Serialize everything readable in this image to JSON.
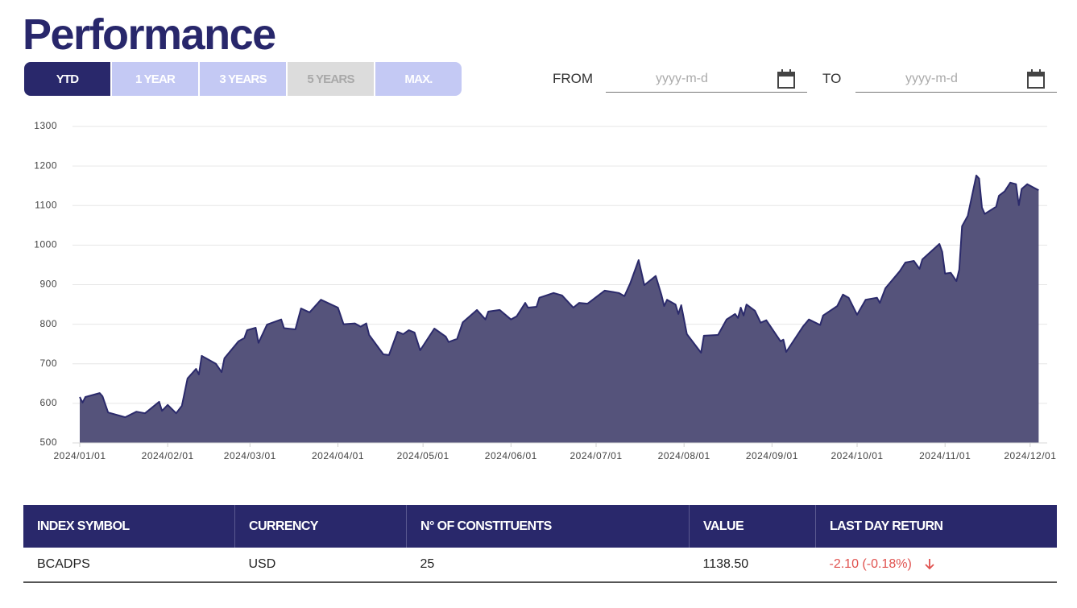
{
  "header": {
    "title": "Performance"
  },
  "tabs": [
    "YTD",
    "1 YEAR",
    "3 YEARS",
    "5 YEARS",
    "MAX."
  ],
  "date_range": {
    "from_label": "FROM",
    "from_placeholder": "yyyy-m-d",
    "to_label": "TO",
    "to_placeholder": "yyyy-m-d"
  },
  "chart_data": {
    "type": "area",
    "x": [
      "2024/01/01",
      "2024/01/02",
      "2024/01/03",
      "2024/01/08",
      "2024/01/09",
      "2024/01/11",
      "2024/01/17",
      "2024/01/21",
      "2024/01/24",
      "2024/01/29",
      "2024/01/30",
      "2024/02/01",
      "2024/02/04",
      "2024/02/06",
      "2024/02/08",
      "2024/02/11",
      "2024/02/12",
      "2024/02/13",
      "2024/02/18",
      "2024/02/20",
      "2024/02/21",
      "2024/02/26",
      "2024/02/28",
      "2024/02/29",
      "2024/03/03",
      "2024/03/04",
      "2024/03/07",
      "2024/03/12",
      "2024/03/13",
      "2024/03/17",
      "2024/03/19",
      "2024/03/22",
      "2024/03/26",
      "2024/04/01",
      "2024/04/03",
      "2024/04/07",
      "2024/04/09",
      "2024/04/11",
      "2024/04/12",
      "2024/04/17",
      "2024/04/19",
      "2024/04/22",
      "2024/04/24",
      "2024/04/26",
      "2024/04/28",
      "2024/04/30",
      "2024/05/05",
      "2024/05/09",
      "2024/05/10",
      "2024/05/13",
      "2024/05/15",
      "2024/05/20",
      "2024/05/23",
      "2024/05/24",
      "2024/05/28",
      "2024/06/01",
      "2024/06/03",
      "2024/06/06",
      "2024/06/07",
      "2024/06/10",
      "2024/06/11",
      "2024/06/16",
      "2024/06/19",
      "2024/06/23",
      "2024/06/25",
      "2024/06/28",
      "2024/07/04",
      "2024/07/09",
      "2024/07/11",
      "2024/07/13",
      "2024/07/16",
      "2024/07/18",
      "2024/07/22",
      "2024/07/24",
      "2024/07/25",
      "2024/07/26",
      "2024/07/29",
      "2024/07/30",
      "2024/07/31",
      "2024/08/02",
      "2024/08/07",
      "2024/08/08",
      "2024/08/13",
      "2024/08/16",
      "2024/08/19",
      "2024/08/20",
      "2024/08/21",
      "2024/08/22",
      "2024/08/23",
      "2024/08/26",
      "2024/08/28",
      "2024/08/30",
      "2024/09/04",
      "2024/09/05",
      "2024/09/06",
      "2024/09/12",
      "2024/09/14",
      "2024/09/18",
      "2024/09/19",
      "2024/09/24",
      "2024/09/26",
      "2024/09/28",
      "2024/10/01",
      "2024/10/04",
      "2024/10/08",
      "2024/10/09",
      "2024/10/11",
      "2024/10/16",
      "2024/10/18",
      "2024/10/21",
      "2024/10/23",
      "2024/10/24",
      "2024/10/30",
      "2024/10/31",
      "2024/11/01",
      "2024/11/03",
      "2024/11/05",
      "2024/11/06",
      "2024/11/07",
      "2024/11/09",
      "2024/11/12",
      "2024/11/13",
      "2024/11/14",
      "2024/11/15",
      "2024/11/19",
      "2024/11/20",
      "2024/11/22",
      "2024/11/24",
      "2024/11/26",
      "2024/11/27",
      "2024/11/28",
      "2024/11/30",
      "2024/12/04"
    ],
    "series": [
      {
        "color": "#2b2a6b",
        "fill": "#55537b",
        "values": [
          616,
          602,
          616,
          626,
          618,
          577,
          565,
          579,
          575,
          604,
          581,
          596,
          575,
          594,
          663,
          687,
          673,
          720,
          700,
          679,
          714,
          757,
          765,
          785,
          791,
          753,
          799,
          812,
          790,
          787,
          840,
          830,
          862,
          842,
          800,
          802,
          794,
          802,
          773,
          724,
          722,
          781,
          775,
          785,
          779,
          734,
          789,
          769,
          755,
          763,
          805,
          836,
          812,
          832,
          836,
          812,
          820,
          854,
          842,
          844,
          867,
          879,
          873,
          842,
          854,
          852,
          885,
          879,
          871,
          903,
          962,
          899,
          922,
          875,
          846,
          862,
          850,
          826,
          848,
          775,
          728,
          771,
          773,
          812,
          826,
          816,
          842,
          822,
          850,
          834,
          804,
          810,
          757,
          761,
          730,
          795,
          812,
          798,
          822,
          846,
          875,
          867,
          824,
          862,
          867,
          854,
          891,
          934,
          956,
          960,
          940,
          964,
          1003,
          983,
          928,
          930,
          909,
          938,
          1048,
          1074,
          1176,
          1168,
          1095,
          1079,
          1097,
          1125,
          1136,
          1158,
          1154,
          1101,
          1142,
          1154,
          1138.5
        ]
      }
    ],
    "xlim": [
      "2024/01/01",
      "2024/12/07"
    ],
    "xticks": [
      "2024/01/01",
      "2024/02/01",
      "2024/03/01",
      "2024/04/01",
      "2024/05/01",
      "2024/06/01",
      "2024/07/01",
      "2024/08/01",
      "2024/09/01",
      "2024/10/01",
      "2024/11/01",
      "2024/12/01"
    ],
    "ylim": [
      500,
      1300
    ],
    "yticks": [
      500,
      600,
      700,
      800,
      900,
      1000,
      1100,
      1200,
      1300
    ],
    "grid": true
  },
  "table": {
    "columns": [
      "INDEX SYMBOL",
      "CURRENCY",
      "N° OF CONSTITUENTS",
      "VALUE",
      "LAST DAY RETURN"
    ],
    "rows": [
      [
        "BCADPS",
        "USD",
        "25",
        "1138.50",
        "-2.10 (-0.18%)"
      ]
    ]
  }
}
